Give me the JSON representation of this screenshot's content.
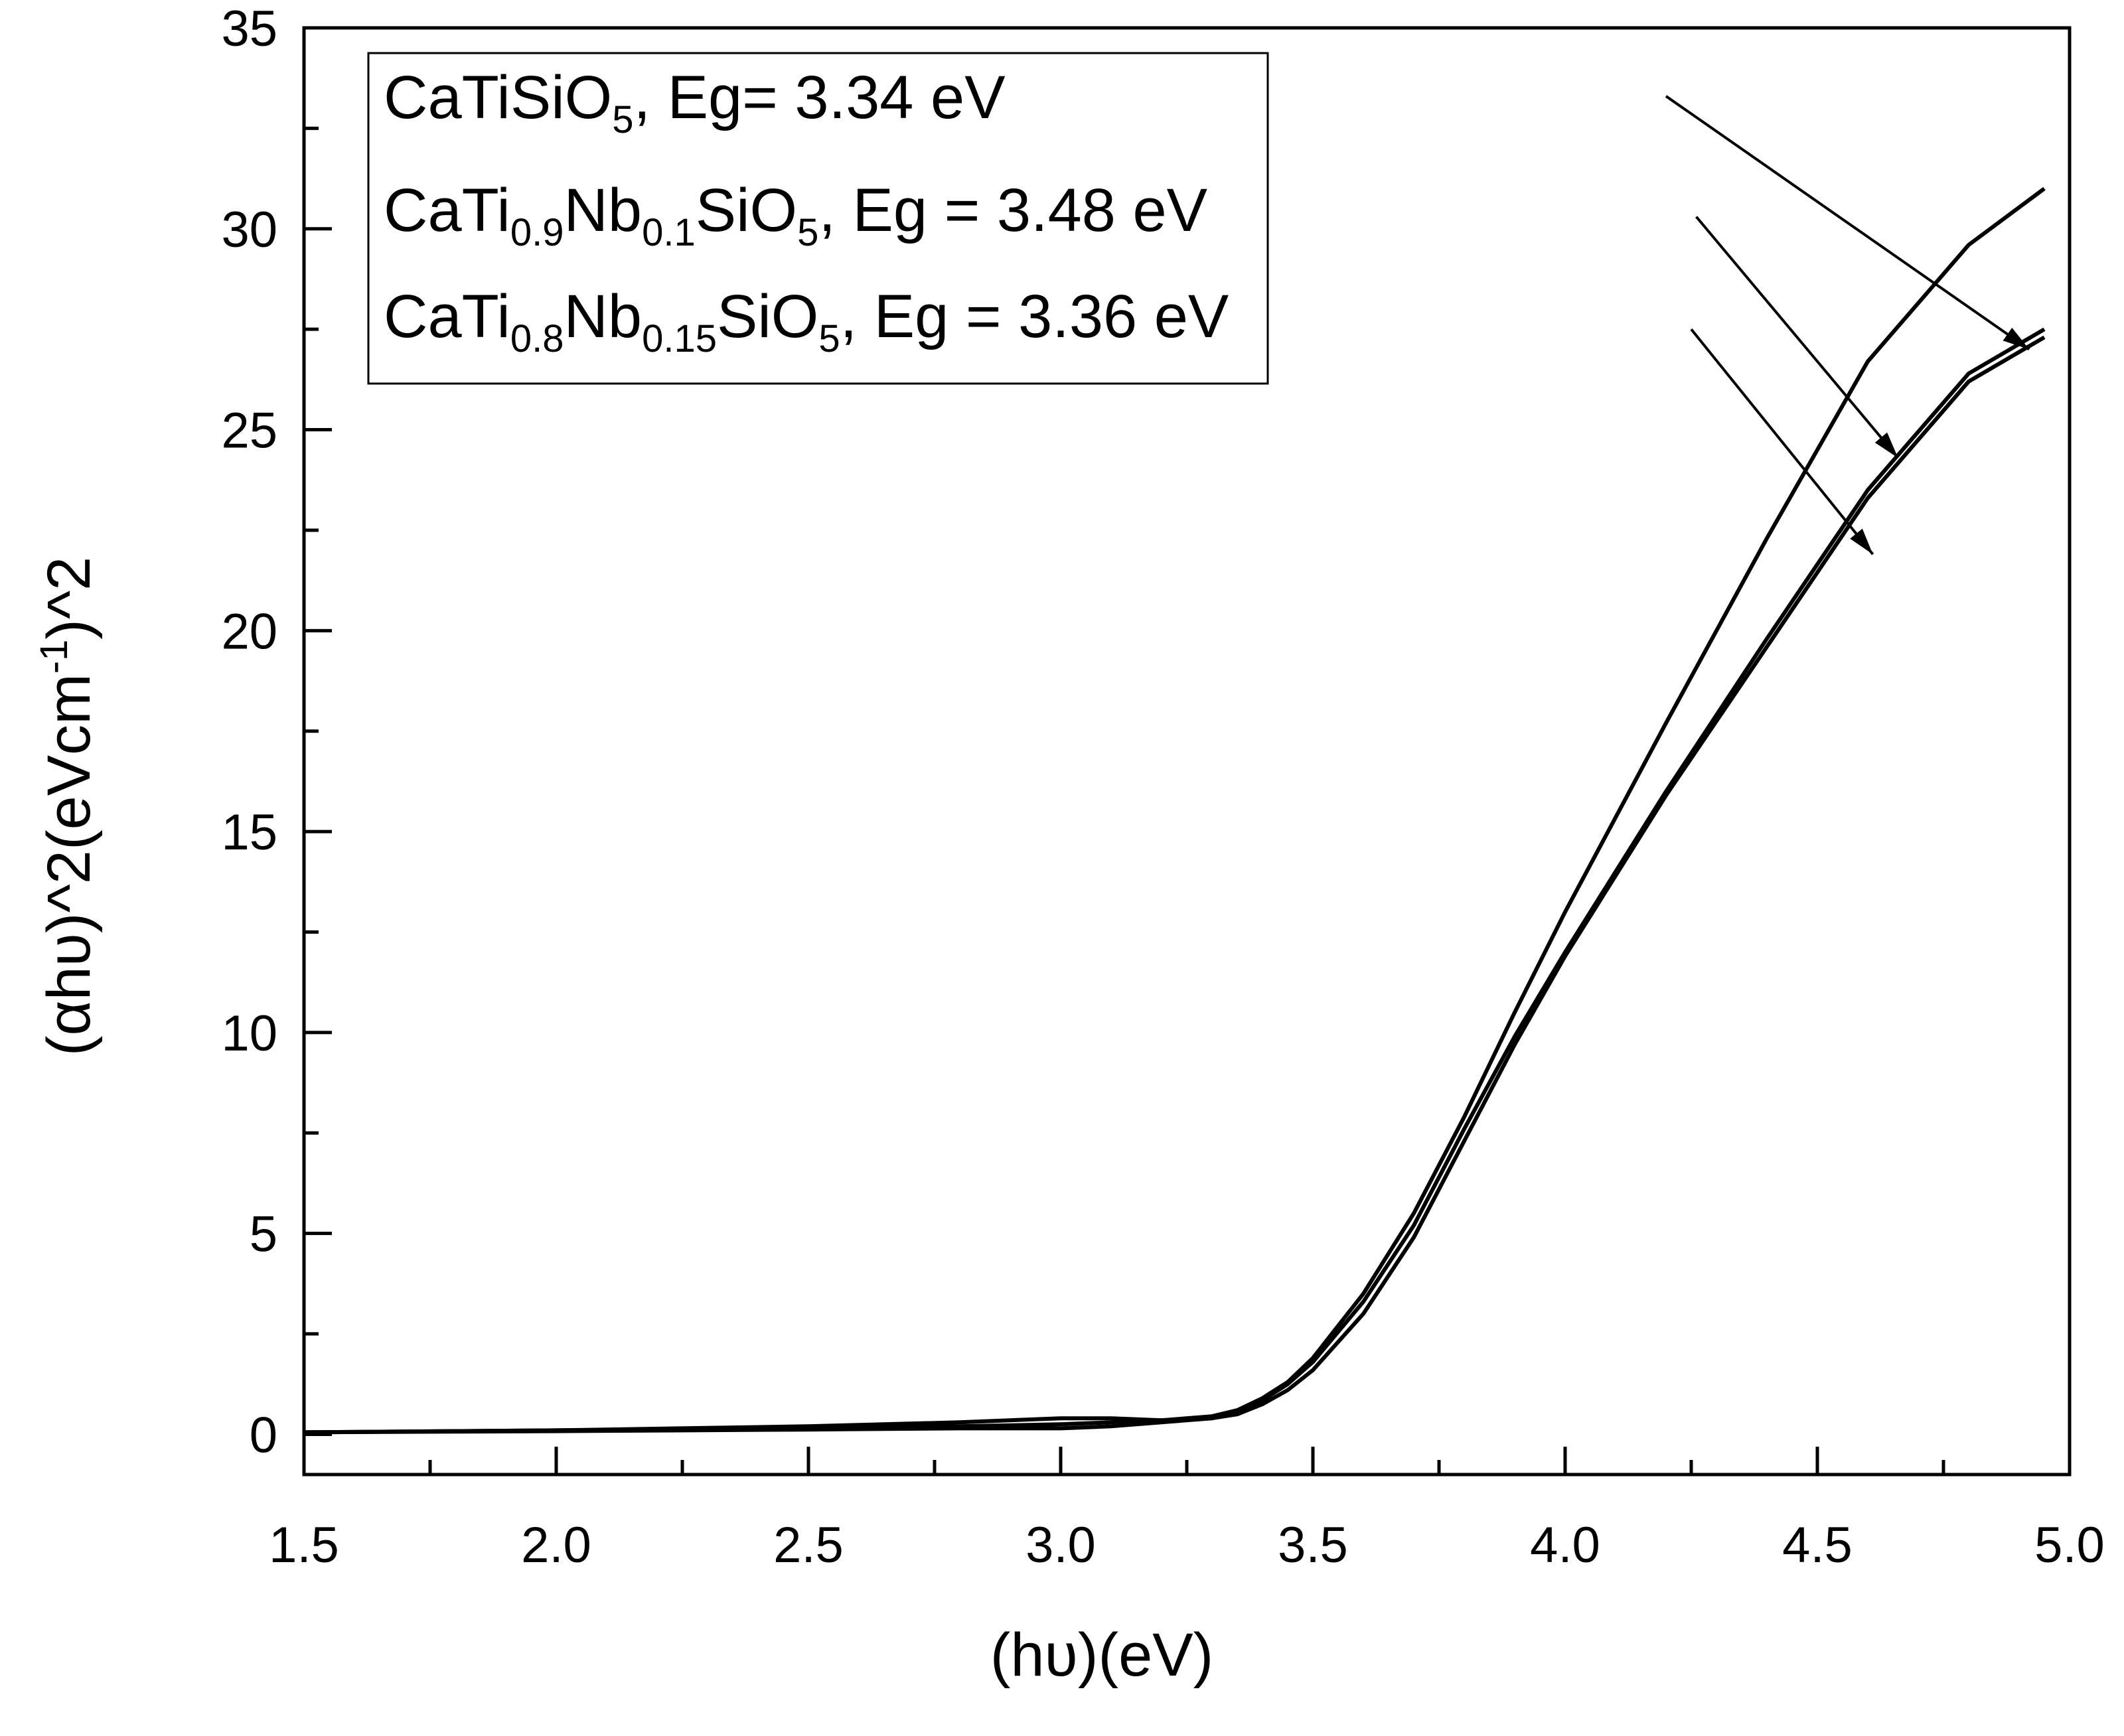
{
  "chart_data": {
    "type": "line",
    "xlabel": "(hυ)(eV)",
    "ylabel": "(αhυ)^2(eVcm-1)^2",
    "ylabel_parts": [
      "(αhυ)^2(eVcm",
      "-1",
      ")^2"
    ],
    "xlim": [
      1.5,
      5.0
    ],
    "ylim": [
      -1,
      35
    ],
    "x_ticks": [
      1.5,
      2.0,
      2.5,
      3.0,
      3.5,
      4.0,
      4.5,
      5.0
    ],
    "x_tick_labels": [
      "1.5",
      "2.0",
      "2.5",
      "3.0",
      "3.5",
      "4.0",
      "4.5",
      "5.0"
    ],
    "y_ticks": [
      0,
      5,
      10,
      15,
      20,
      25,
      30,
      35
    ],
    "y_tick_labels": [
      "0",
      "5",
      "10",
      "15",
      "20",
      "25",
      "30",
      "35"
    ],
    "grid": false,
    "legend_position": "top-left",
    "legend": [
      {
        "parts": [
          {
            "t": "CaTiSiO",
            "s": "n"
          },
          {
            "t": "5",
            "s": "sub"
          },
          {
            "t": ", Eg=  3.34 eV",
            "s": "n"
          }
        ]
      },
      {
        "parts": [
          {
            "t": "CaTi",
            "s": "n"
          },
          {
            "t": "0.9",
            "s": "sub"
          },
          {
            "t": "Nb",
            "s": "n"
          },
          {
            "t": "0.1",
            "s": "sub"
          },
          {
            "t": "SiO",
            "s": "n"
          },
          {
            "t": "5",
            "s": "sub"
          },
          {
            "t": ", Eg = 3.48 eV",
            "s": "n"
          }
        ]
      },
      {
        "parts": [
          {
            "t": "CaTi",
            "s": "n"
          },
          {
            "t": "0.8",
            "s": "sub"
          },
          {
            "t": "Nb",
            "s": "n"
          },
          {
            "t": "0.15",
            "s": "sub"
          },
          {
            "t": "SiO",
            "s": "n"
          },
          {
            "t": "5",
            "s": "sub"
          },
          {
            "t": ", Eg = 3.36 eV",
            "s": "n"
          }
        ]
      }
    ],
    "series": [
      {
        "x": [
          1.5,
          2.0,
          2.5,
          2.8,
          3.0,
          3.1,
          3.2,
          3.3,
          3.35,
          3.4,
          3.45,
          3.5,
          3.6,
          3.7,
          3.8,
          3.9,
          4.0,
          4.2,
          4.4,
          4.6,
          4.8,
          4.95
        ],
        "y": [
          0.05,
          0.1,
          0.15,
          0.2,
          0.25,
          0.3,
          0.35,
          0.45,
          0.6,
          0.9,
          1.3,
          1.9,
          3.5,
          5.5,
          7.9,
          10.5,
          13.0,
          17.7,
          22.3,
          26.7,
          29.6,
          31.0
        ]
      },
      {
        "x": [
          1.5,
          2.0,
          2.5,
          2.8,
          3.0,
          3.1,
          3.2,
          3.3,
          3.35,
          3.4,
          3.45,
          3.5,
          3.6,
          3.7,
          3.8,
          3.9,
          4.0,
          4.2,
          4.4,
          4.6,
          4.8,
          4.95
        ],
        "y": [
          0.05,
          0.1,
          0.2,
          0.3,
          0.4,
          0.4,
          0.35,
          0.4,
          0.55,
          0.85,
          1.25,
          1.8,
          3.3,
          5.2,
          7.6,
          9.9,
          12.0,
          16.0,
          19.8,
          23.5,
          26.4,
          27.5
        ]
      },
      {
        "x": [
          1.5,
          2.0,
          2.5,
          2.8,
          3.0,
          3.1,
          3.2,
          3.3,
          3.35,
          3.4,
          3.45,
          3.5,
          3.6,
          3.7,
          3.8,
          3.9,
          4.0,
          4.2,
          4.4,
          4.6,
          4.8,
          4.95
        ],
        "y": [
          0.05,
          0.08,
          0.12,
          0.15,
          0.15,
          0.2,
          0.3,
          0.4,
          0.5,
          0.75,
          1.1,
          1.6,
          3.0,
          4.9,
          7.3,
          9.7,
          11.9,
          15.9,
          19.6,
          23.3,
          26.2,
          27.3
        ]
      }
    ],
    "arrows": [
      {
        "from": [
          4.2,
          33.3
        ],
        "to": [
          4.92,
          27.0
        ]
      },
      {
        "from": [
          4.26,
          30.3
        ],
        "to": [
          4.66,
          24.3
        ]
      },
      {
        "from": [
          4.25,
          27.5
        ],
        "to": [
          4.61,
          21.9
        ]
      }
    ]
  }
}
